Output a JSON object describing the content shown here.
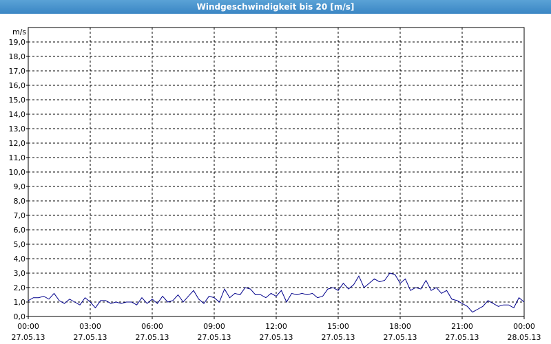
{
  "chart_data": {
    "type": "line",
    "title": "Windgeschwindigkeit bis 20 [m/s]",
    "y_unit": "m/s",
    "xlim": [
      0,
      24
    ],
    "xticks": [
      {
        "value": 0,
        "label": "00:00"
      },
      {
        "value": 3,
        "label": "03:00"
      },
      {
        "value": 6,
        "label": "06:00"
      },
      {
        "value": 9,
        "label": "09:00"
      },
      {
        "value": 12,
        "label": "12:00"
      },
      {
        "value": 15,
        "label": "15:00"
      },
      {
        "value": 18,
        "label": "18:00"
      },
      {
        "value": 21,
        "label": "21:00"
      },
      {
        "value": 24,
        "label": "00:00"
      }
    ],
    "xtick_dates": [
      "27.05.13",
      "27.05.13",
      "27.05.13",
      "27.05.13",
      "27.05.13",
      "27.05.13",
      "27.05.13",
      "27.05.13",
      "28.05.13"
    ],
    "ylim": [
      0,
      20
    ],
    "yticks": [
      {
        "value": 0,
        "label": "0,0"
      },
      {
        "value": 1,
        "label": "1,0"
      },
      {
        "value": 2,
        "label": "2,0"
      },
      {
        "value": 3,
        "label": "3,0"
      },
      {
        "value": 4,
        "label": "4,0"
      },
      {
        "value": 5,
        "label": "5,0"
      },
      {
        "value": 6,
        "label": "6,0"
      },
      {
        "value": 7,
        "label": "7,0"
      },
      {
        "value": 8,
        "label": "8,0"
      },
      {
        "value": 9,
        "label": "9,0"
      },
      {
        "value": 10,
        "label": "10,0"
      },
      {
        "value": 11,
        "label": "11,0"
      },
      {
        "value": 12,
        "label": "12,0"
      },
      {
        "value": 13,
        "label": "13,0"
      },
      {
        "value": 14,
        "label": "14,0"
      },
      {
        "value": 15,
        "label": "15,0"
      },
      {
        "value": 16,
        "label": "16,0"
      },
      {
        "value": 17,
        "label": "17,0"
      },
      {
        "value": 18,
        "label": "18,0"
      },
      {
        "value": 19,
        "label": "19,0"
      }
    ],
    "grid": true,
    "x": [
      0,
      0.25,
      0.5,
      0.75,
      1,
      1.25,
      1.5,
      1.75,
      2,
      2.25,
      2.5,
      2.75,
      3,
      3.25,
      3.5,
      3.75,
      4,
      4.25,
      4.5,
      4.75,
      5,
      5.25,
      5.5,
      5.75,
      6,
      6.25,
      6.5,
      6.75,
      7,
      7.25,
      7.5,
      7.75,
      8,
      8.25,
      8.5,
      8.75,
      9,
      9.25,
      9.5,
      9.75,
      10,
      10.25,
      10.5,
      10.75,
      11,
      11.25,
      11.5,
      11.75,
      12,
      12.25,
      12.5,
      12.75,
      13,
      13.25,
      13.5,
      13.75,
      14,
      14.25,
      14.5,
      14.75,
      15,
      15.25,
      15.5,
      15.75,
      16,
      16.25,
      16.5,
      16.75,
      17,
      17.25,
      17.5,
      17.75,
      18,
      18.25,
      18.5,
      18.75,
      19,
      19.25,
      19.5,
      19.75,
      20,
      20.25,
      20.5,
      20.75,
      21,
      21.25,
      21.5,
      21.75,
      22,
      22.25,
      22.5,
      22.75,
      23,
      23.25,
      23.5,
      23.75,
      24
    ],
    "series": [
      {
        "color": "#00008b",
        "values": [
          1.1,
          1.3,
          1.3,
          1.4,
          1.2,
          1.6,
          1.1,
          0.9,
          1.2,
          1.0,
          0.8,
          1.3,
          1.0,
          0.6,
          1.1,
          1.1,
          0.9,
          1.0,
          0.9,
          1.0,
          1.0,
          0.8,
          1.3,
          0.9,
          1.2,
          0.9,
          1.4,
          1.0,
          1.1,
          1.5,
          1.0,
          1.4,
          1.8,
          1.2,
          0.9,
          1.4,
          1.3,
          1.0,
          1.9,
          1.3,
          1.6,
          1.5,
          2.0,
          1.9,
          1.5,
          1.5,
          1.3,
          1.6,
          1.4,
          1.8,
          1.0,
          1.6,
          1.5,
          1.6,
          1.5,
          1.6,
          1.3,
          1.4,
          1.9,
          2.0,
          1.8,
          2.3,
          1.9,
          2.2,
          2.8,
          2.0,
          2.3,
          2.6,
          2.4,
          2.5,
          3.0,
          2.9,
          2.3,
          2.6,
          1.8,
          2.0,
          1.9,
          2.5,
          1.8,
          2.0,
          1.6,
          1.8,
          1.2,
          1.1,
          0.9,
          0.7,
          0.3,
          0.5,
          0.7,
          1.1,
          0.9,
          0.7,
          0.8,
          0.8,
          0.6,
          1.3,
          1.0
        ]
      }
    ]
  }
}
